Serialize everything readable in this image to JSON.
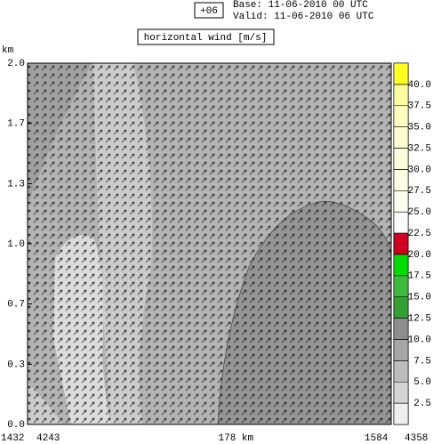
{
  "header": {
    "step": "+06",
    "base": "Base: 11-06-2010  00 UTC",
    "valid": "Valid: 11-06-2010  06 UTC"
  },
  "chart_data": {
    "type": "contour",
    "title": "horizontal wind [m/s]",
    "y_label": "km",
    "ylim": [
      0,
      2
    ],
    "yticks": [
      {
        "value": 0,
        "label": "0.0"
      },
      {
        "value": 0.333,
        "label": "0.3"
      },
      {
        "value": 0.667,
        "label": "0.7"
      },
      {
        "value": 1,
        "label": "1.0"
      },
      {
        "value": 1.333,
        "label": "1.3"
      },
      {
        "value": 1.667,
        "label": "1.7"
      },
      {
        "value": 2,
        "label": "2.0"
      }
    ],
    "x_labels": [
      "1432",
      "4243",
      "178 km",
      "1584",
      "4358"
    ],
    "colorbar": {
      "lim": [
        0,
        42.5
      ],
      "ticks": [
        2.5,
        {
          "value": 5,
          "label": "5.0"
        },
        7.5,
        {
          "value": 10,
          "label": "10.0"
        },
        12.5,
        {
          "value": 15,
          "label": "15.0"
        },
        17.5,
        {
          "value": 20,
          "label": "20.0"
        },
        22.5,
        {
          "value": 25,
          "label": "25.0"
        },
        27.5,
        {
          "value": 30,
          "label": "30.0"
        },
        32.5,
        {
          "value": 35,
          "label": "35.0"
        },
        37.5,
        {
          "value": 40,
          "label": "40.0"
        }
      ],
      "colors": [
        "#eeeeee",
        "#d4d4d4",
        "#bdbdbd",
        "#a6a6a6",
        "#8e8e8e",
        "#33a033",
        "#3cbc3c",
        "#00dd00",
        "#d00020",
        "#fbfbfb",
        "#fdfdf0",
        "#fdfde6",
        "#fdfddc",
        "#fdfdd0",
        "#fdfdc0",
        "#fdfda0",
        "#ffff20"
      ]
    }
  }
}
